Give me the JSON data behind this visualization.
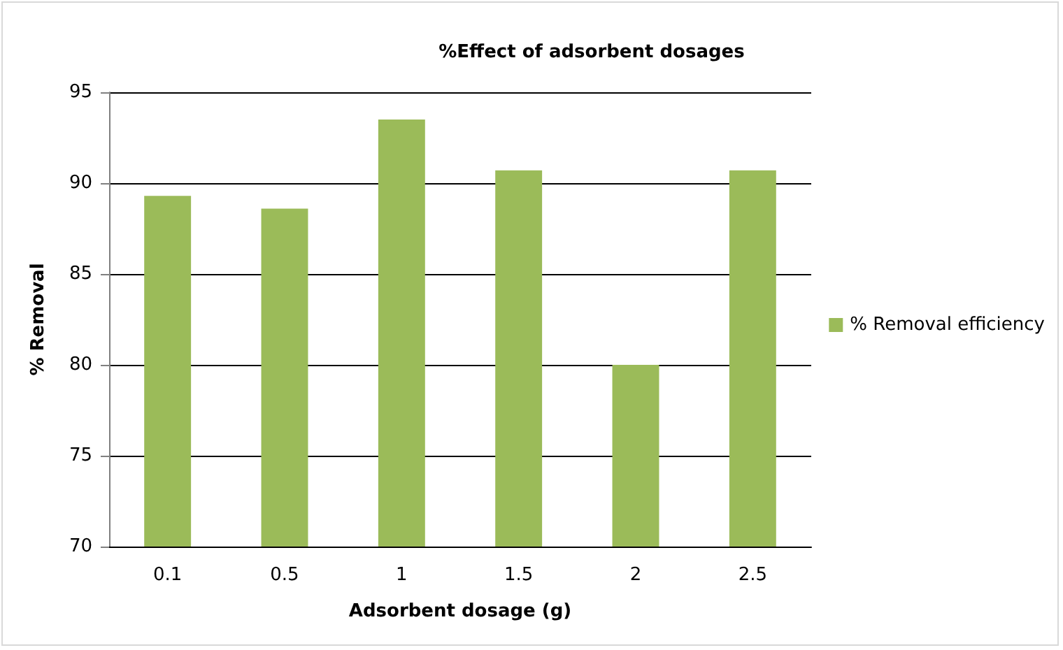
{
  "chart_data": {
    "type": "bar",
    "title": "%Effect of adsorbent dosages",
    "xlabel": "Adsorbent dosage (g)",
    "ylabel": "% Removal",
    "categories": [
      "0.1",
      "0.5",
      "1",
      "1.5",
      "2",
      "2.5"
    ],
    "series": [
      {
        "name": "% Removal efficiency",
        "color": "#9bbb59",
        "values": [
          89.3,
          88.6,
          93.5,
          90.7,
          80.0,
          90.7
        ]
      }
    ],
    "ylim": [
      70,
      95
    ],
    "yticks": [
      70,
      75,
      80,
      85,
      90,
      95
    ],
    "grid": "y",
    "legend": "right"
  }
}
